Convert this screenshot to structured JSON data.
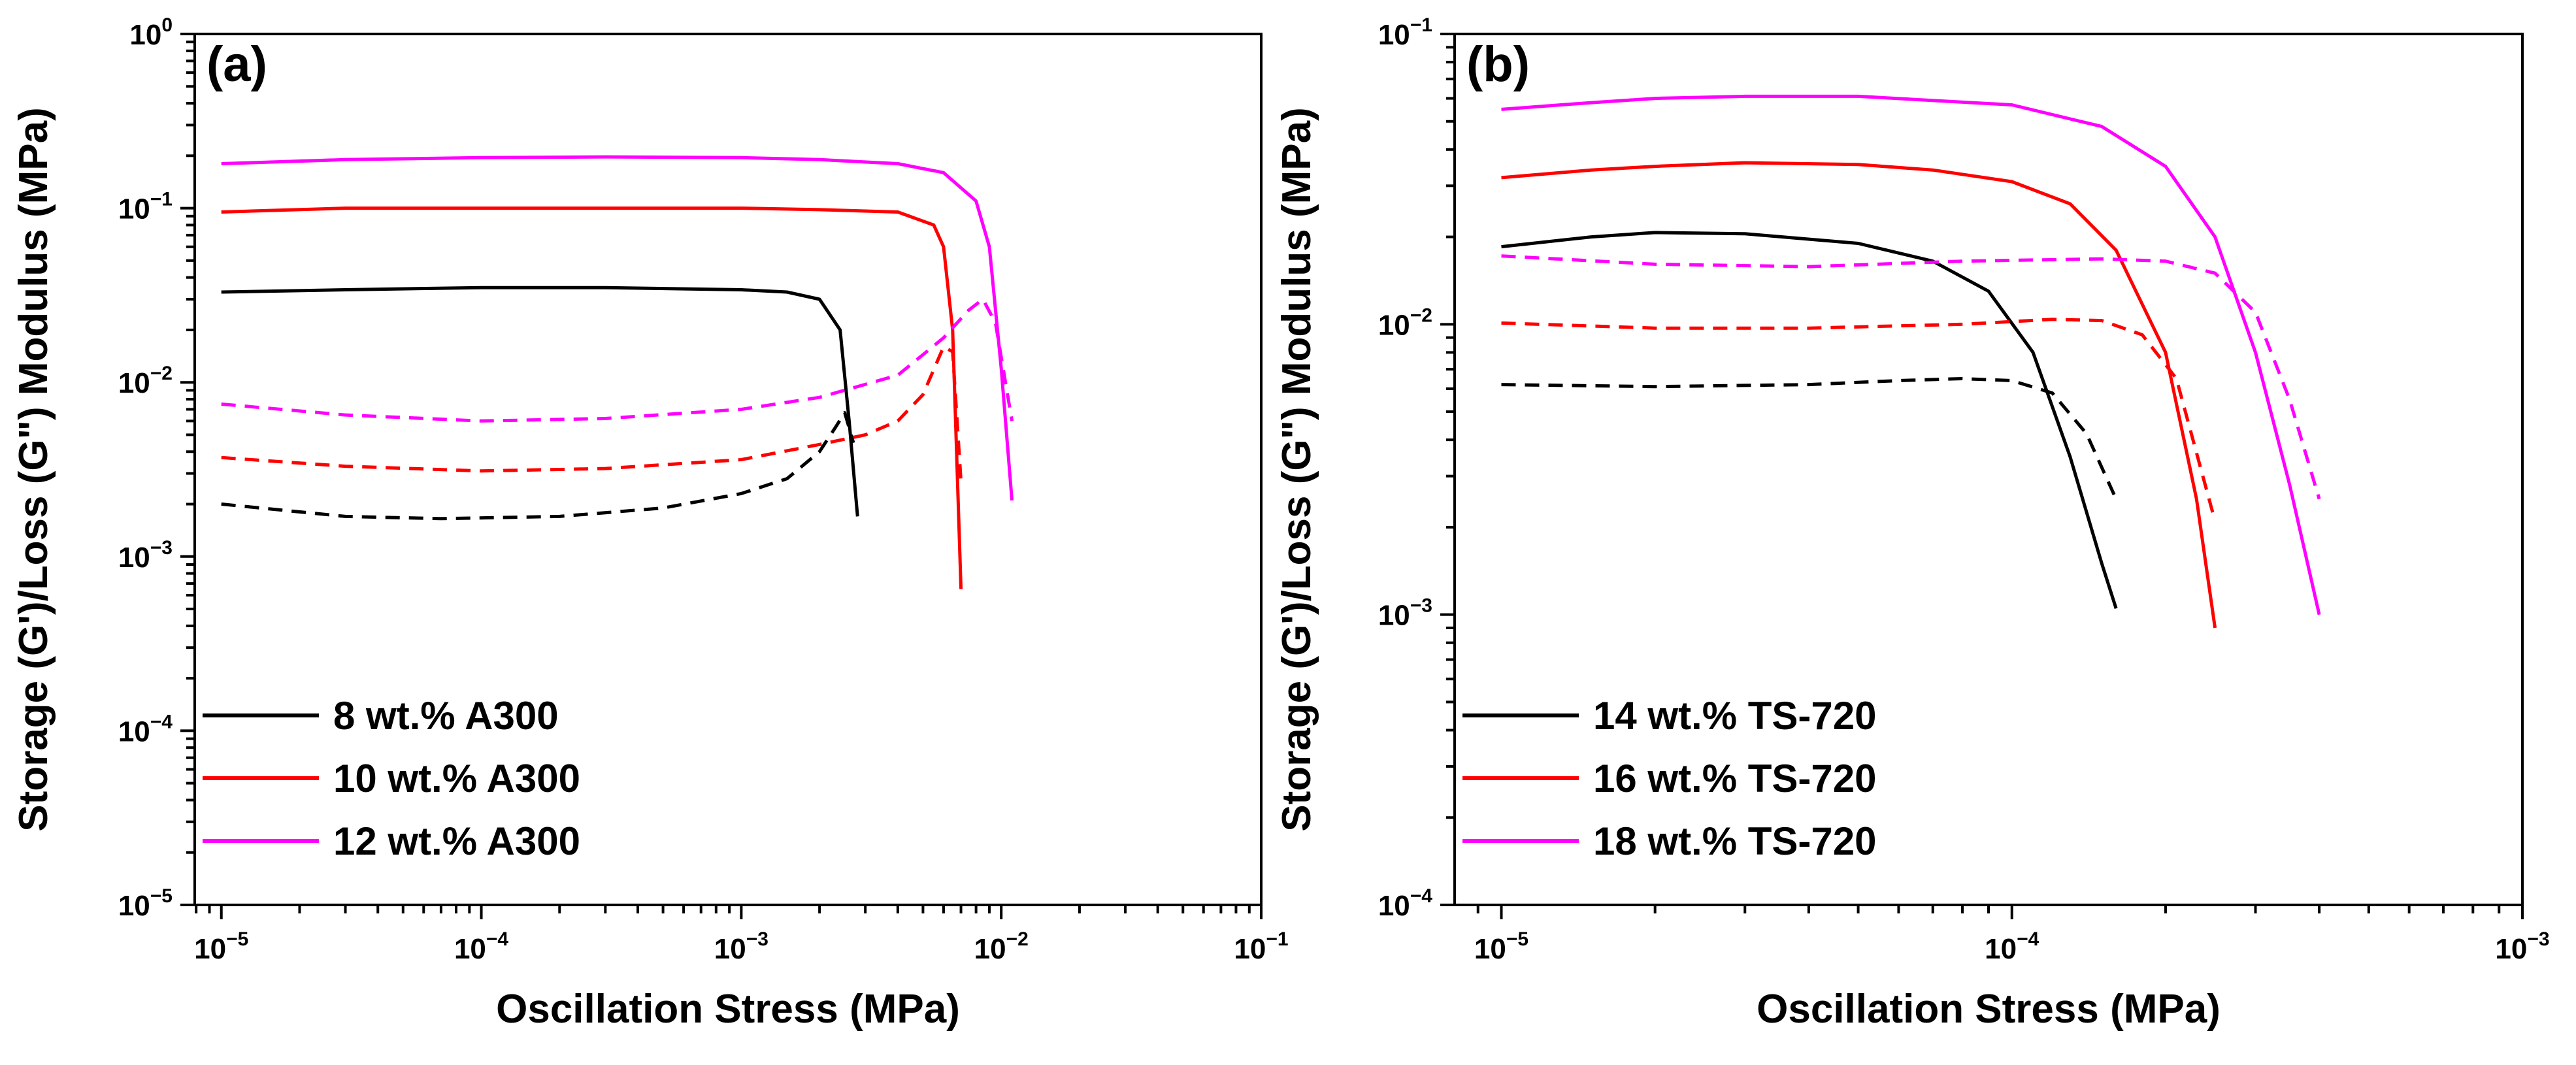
{
  "colors": {
    "black": "#000000",
    "red": "#ff0000",
    "magenta": "#ff00ff"
  },
  "chart_data": [
    {
      "type": "line",
      "panel_label": "(a)",
      "xscale": "log",
      "yscale": "log",
      "xlim": [
        7.9e-06,
        0.1
      ],
      "ylim": [
        1e-05,
        1
      ],
      "xlabel": "Oscillation Stress (MPa)",
      "ylabel": "Storage (G') / Loss (G\") Modulus (MPa)",
      "xlabel_text": "Oscillation Stress (MPa)",
      "ylabel_text": "Storage (G')/Loss (G\") Modulus (MPa)",
      "xticks": [
        {
          "base": "10",
          "exp": "−5"
        },
        {
          "base": "10",
          "exp": "−4"
        },
        {
          "base": "10",
          "exp": "−3"
        },
        {
          "base": "10",
          "exp": "−2"
        },
        {
          "base": "10",
          "exp": "−1"
        }
      ],
      "yticks": [
        {
          "base": "10",
          "exp": "−5"
        },
        {
          "base": "10",
          "exp": "−4"
        },
        {
          "base": "10",
          "exp": "−3"
        },
        {
          "base": "10",
          "exp": "−2"
        },
        {
          "base": "10",
          "exp": "−1"
        },
        {
          "base": "10",
          "exp": "0"
        }
      ],
      "legend": {
        "position": "bottom-left",
        "entries": [
          "8 wt.% A300",
          "10 wt.% A300",
          "12 wt.% A300"
        ]
      },
      "series": [
        {
          "name": "8 wt.% A300 G'",
          "color": "black",
          "style": "solid",
          "x": [
            1e-05,
            3e-05,
            0.0001,
            0.0003,
            0.001,
            0.0015,
            0.002,
            0.0024,
            0.0026,
            0.0028
          ],
          "y": [
            0.033,
            0.034,
            0.035,
            0.035,
            0.034,
            0.033,
            0.03,
            0.02,
            0.006,
            0.0017
          ]
        },
        {
          "name": "8 wt.% A300 G\"",
          "color": "black",
          "style": "dashed",
          "x": [
            1e-05,
            3e-05,
            7e-05,
            0.0002,
            0.0005,
            0.001,
            0.0015,
            0.002,
            0.0023,
            0.0025,
            0.0027
          ],
          "y": [
            0.002,
            0.0017,
            0.00165,
            0.0017,
            0.0019,
            0.0023,
            0.0028,
            0.004,
            0.0055,
            0.0067,
            0.0045
          ]
        },
        {
          "name": "10 wt.% A300 G'",
          "color": "red",
          "style": "solid",
          "x": [
            1e-05,
            3e-05,
            0.0001,
            0.0003,
            0.001,
            0.002,
            0.004,
            0.0055,
            0.006,
            0.0065,
            0.007
          ],
          "y": [
            0.095,
            0.1,
            0.1,
            0.1,
            0.1,
            0.098,
            0.095,
            0.08,
            0.06,
            0.02,
            0.00065
          ]
        },
        {
          "name": "10 wt.% A300 G\"",
          "color": "red",
          "style": "dashed",
          "x": [
            1e-05,
            3e-05,
            0.0001,
            0.0003,
            0.001,
            0.002,
            0.003,
            0.004,
            0.005,
            0.006,
            0.0065,
            0.007
          ],
          "y": [
            0.0037,
            0.0033,
            0.0031,
            0.0032,
            0.0036,
            0.0044,
            0.005,
            0.006,
            0.0085,
            0.016,
            0.015,
            0.0027
          ]
        },
        {
          "name": "12 wt.% A300 G'",
          "color": "magenta",
          "style": "solid",
          "x": [
            1e-05,
            3e-05,
            0.0001,
            0.0003,
            0.001,
            0.002,
            0.004,
            0.006,
            0.008,
            0.009,
            0.01,
            0.011
          ],
          "y": [
            0.18,
            0.19,
            0.195,
            0.197,
            0.195,
            0.19,
            0.18,
            0.16,
            0.11,
            0.06,
            0.012,
            0.0021
          ]
        },
        {
          "name": "12 wt.% A300 G\"",
          "color": "magenta",
          "style": "dashed",
          "x": [
            1e-05,
            3e-05,
            0.0001,
            0.0003,
            0.001,
            0.002,
            0.004,
            0.006,
            0.0075,
            0.0085,
            0.0095,
            0.011
          ],
          "y": [
            0.0075,
            0.0065,
            0.006,
            0.0062,
            0.007,
            0.0082,
            0.011,
            0.018,
            0.026,
            0.03,
            0.022,
            0.006
          ]
        }
      ]
    },
    {
      "type": "line",
      "panel_label": "(b)",
      "xscale": "log",
      "yscale": "log",
      "xlim": [
        8.1e-06,
        0.001
      ],
      "ylim": [
        0.0001,
        0.1
      ],
      "xlabel": "Oscillation Stress (MPa)",
      "ylabel": "Storage (G') / Loss (G\") Modulus (MPa)",
      "xlabel_text": "Oscillation Stress (MPa)",
      "ylabel_text": "Storage (G')/Loss (G\") Modulus (MPa)",
      "xticks": [
        {
          "base": "10",
          "exp": "−5"
        },
        {
          "base": "10",
          "exp": "−4"
        },
        {
          "base": "10",
          "exp": "−3"
        }
      ],
      "yticks": [
        {
          "base": "10",
          "exp": "−4"
        },
        {
          "base": "10",
          "exp": "−3"
        },
        {
          "base": "10",
          "exp": "−2"
        },
        {
          "base": "10",
          "exp": "−1"
        }
      ],
      "legend": {
        "position": "bottom-left",
        "entries": [
          "14 wt.% TS-720",
          "16 wt.% TS-720",
          "18 wt.% TS-720"
        ]
      },
      "series": [
        {
          "name": "14 wt.% TS-720 G'",
          "color": "black",
          "style": "solid",
          "x": [
            1e-05,
            1.5e-05,
            2e-05,
            3e-05,
            5e-05,
            7e-05,
            9e-05,
            0.00011,
            0.00013,
            0.00015,
            0.00016
          ],
          "y": [
            0.0185,
            0.02,
            0.0207,
            0.0205,
            0.019,
            0.0165,
            0.013,
            0.008,
            0.0035,
            0.0015,
            0.00105
          ]
        },
        {
          "name": "14 wt.% TS-720 G\"",
          "color": "black",
          "style": "dashed",
          "x": [
            1e-05,
            2e-05,
            4e-05,
            6e-05,
            8e-05,
            0.0001,
            0.00012,
            0.00014,
            0.00016
          ],
          "y": [
            0.0062,
            0.0061,
            0.0062,
            0.0064,
            0.0065,
            0.0064,
            0.0058,
            0.0042,
            0.0025
          ]
        },
        {
          "name": "16 wt.% TS-720 G'",
          "color": "red",
          "style": "solid",
          "x": [
            1e-05,
            1.5e-05,
            2e-05,
            3e-05,
            5e-05,
            7e-05,
            0.0001,
            0.00013,
            0.00016,
            0.0002,
            0.00023,
            0.00025
          ],
          "y": [
            0.032,
            0.034,
            0.035,
            0.036,
            0.0355,
            0.034,
            0.031,
            0.026,
            0.018,
            0.008,
            0.0025,
            0.0009
          ]
        },
        {
          "name": "16 wt.% TS-720 G\"",
          "color": "red",
          "style": "dashed",
          "x": [
            1e-05,
            2e-05,
            4e-05,
            8e-05,
            0.00012,
            0.00015,
            0.00018,
            0.00021,
            0.00025
          ],
          "y": [
            0.0101,
            0.0097,
            0.0097,
            0.01,
            0.0104,
            0.0103,
            0.0092,
            0.0065,
            0.0021
          ]
        },
        {
          "name": "18 wt.% TS-720 G'",
          "color": "magenta",
          "style": "solid",
          "x": [
            1e-05,
            1.5e-05,
            2e-05,
            3e-05,
            5e-05,
            0.0001,
            0.00015,
            0.0002,
            0.00025,
            0.0003,
            0.00035,
            0.0004
          ],
          "y": [
            0.055,
            0.058,
            0.06,
            0.061,
            0.061,
            0.057,
            0.048,
            0.035,
            0.02,
            0.008,
            0.0028,
            0.001
          ]
        },
        {
          "name": "18 wt.% TS-720 G\"",
          "color": "magenta",
          "style": "dashed",
          "x": [
            1e-05,
            2e-05,
            4e-05,
            8e-05,
            0.00015,
            0.0002,
            0.00025,
            0.0003,
            0.00035,
            0.0004
          ],
          "y": [
            0.0172,
            0.0161,
            0.0158,
            0.0165,
            0.0168,
            0.0165,
            0.015,
            0.011,
            0.0055,
            0.0025
          ]
        }
      ]
    }
  ]
}
